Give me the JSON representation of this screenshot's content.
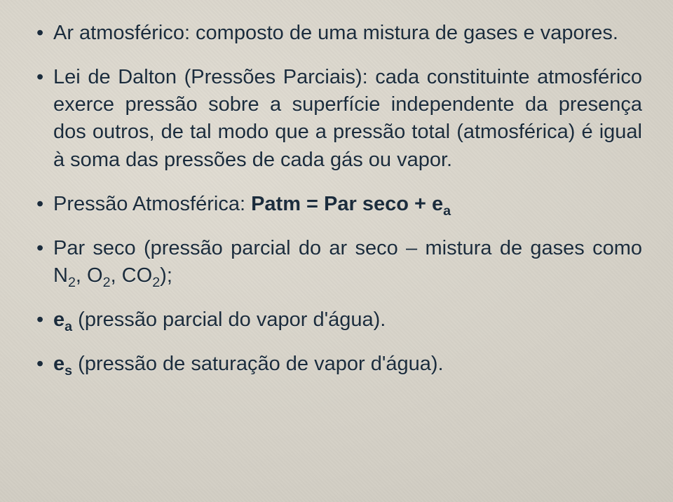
{
  "slide": {
    "text_color": "#1b2c3c",
    "background_color": "#d5d1c8",
    "font_family": "Arial",
    "body_fontsize_pt": 22,
    "bullets": [
      {
        "runs": [
          {
            "t": "Ar atmosférico: composto de uma mistura de gases e vapores."
          }
        ]
      },
      {
        "runs": [
          {
            "t": "Lei de Dalton (Pressões Parciais): cada constituinte atmosférico exerce pressão sobre a superfície independente da presença dos outros, de tal modo que a pressão total (atmosférica) é igual à soma das pressões de cada gás ou vapor."
          }
        ]
      },
      {
        "runs": [
          {
            "t": "Pressão Atmosférica: "
          },
          {
            "t": "Patm = Par seco + e",
            "b": true
          },
          {
            "t": "a",
            "b": true,
            "sub": true
          }
        ]
      },
      {
        "runs": [
          {
            "t": "Par seco (pressão parcial do ar seco – mistura de gases como N"
          },
          {
            "t": "2",
            "sub": true
          },
          {
            "t": ", O"
          },
          {
            "t": "2",
            "sub": true
          },
          {
            "t": ", CO"
          },
          {
            "t": "2",
            "sub": true
          },
          {
            "t": ");"
          }
        ]
      },
      {
        "runs": [
          {
            "t": "e",
            "b": true
          },
          {
            "t": "a",
            "b": true,
            "sub": true
          },
          {
            "t": " (pressão parcial do vapor d'água)."
          }
        ]
      },
      {
        "runs": [
          {
            "t": "e",
            "b": true
          },
          {
            "t": "s",
            "b": true,
            "sub": true
          },
          {
            "t": " (pressão de saturação de vapor d'água)."
          }
        ]
      }
    ]
  }
}
